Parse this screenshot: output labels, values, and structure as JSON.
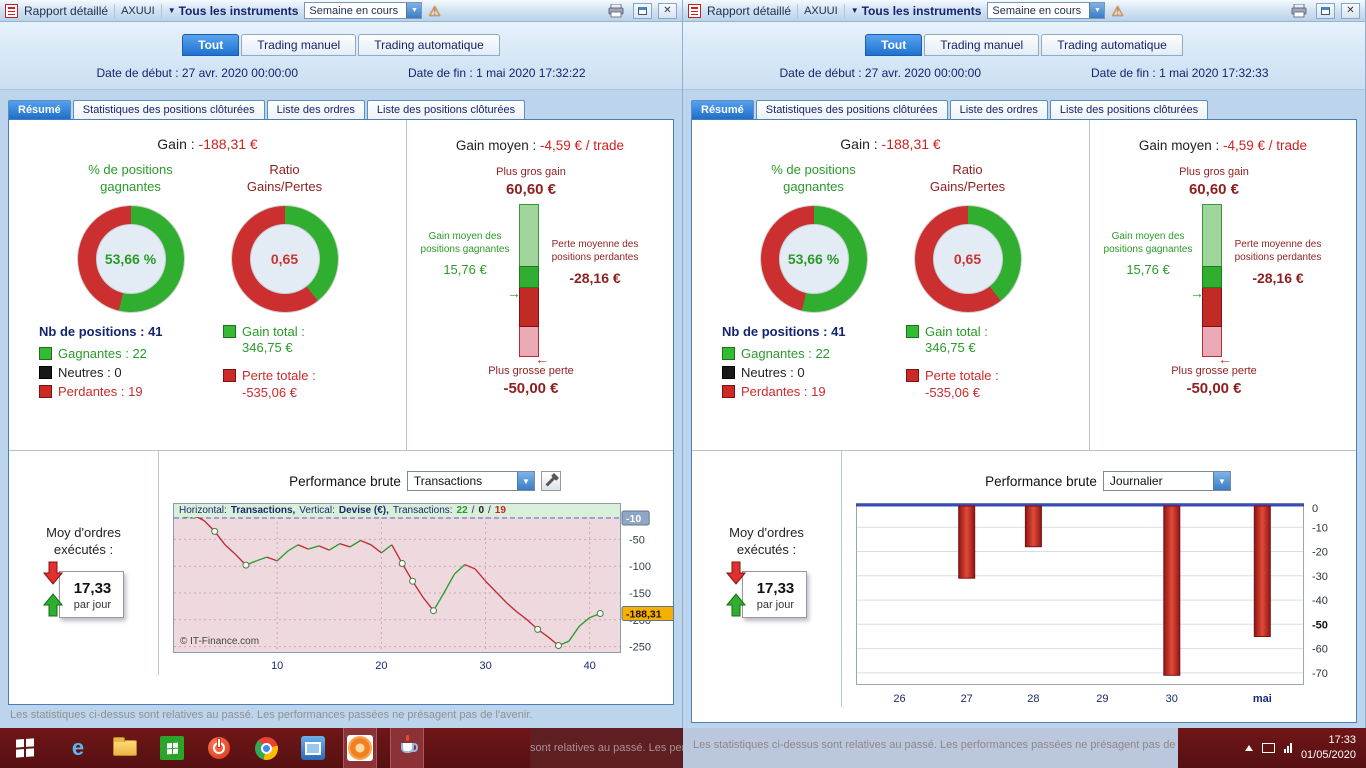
{
  "colors": {
    "green": "#2fae2f",
    "red": "#cc2f2f"
  },
  "taskbar": {
    "time": "17:33",
    "date": "01/05/2020",
    "overlay_text": "sont relatives au passé. Les performances passées ne présagent pas de l'a",
    "icons": [
      "start",
      "internet-explorer",
      "file-explorer",
      "desktop-tile",
      "power",
      "chrome",
      "app-blue",
      "prorealtime",
      "java"
    ]
  },
  "windows": [
    {
      "titlebar": {
        "app": "Rapport détaillé",
        "account": "AXUUI",
        "instruments": "Tous les instruments",
        "period": "Semaine en cours"
      },
      "mode_tabs": {
        "all": "Tout",
        "manual": "Trading manuel",
        "auto": "Trading automatique"
      },
      "dates": {
        "start_label": "Date de début :",
        "start_value": "27 avr. 2020 00:00:00",
        "end_label": "Date de fin :",
        "end_value": "1 mai 2020 17:32:22"
      },
      "tabs": {
        "resume": "Résumé",
        "stats": "Statistiques des positions clôturées",
        "orders": "Liste des ordres",
        "closed": "Liste des positions clôturées"
      },
      "summary": {
        "gain_label": "Gain :",
        "gain_value": "-188,31 €",
        "win_pct_header": "% de positions gagnantes",
        "ratio_header": "Ratio Gains/Pertes",
        "donut_win": {
          "label": "53,66 %",
          "green_pct": 53.66
        },
        "donut_ratio": {
          "label": "0,65",
          "green_pct": 39.4
        },
        "nb_label": "Nb de positions :",
        "nb_value": "41",
        "legend_win_label": "Gagnantes :",
        "legend_win_value": "22",
        "legend_neutral_label": "Neutres :",
        "legend_neutral_value": "0",
        "legend_loss_label": "Perdantes :",
        "legend_loss_value": "19",
        "gain_total_label": "Gain total :",
        "gain_total_value": "346,75 €",
        "loss_total_label": "Perte totale :",
        "loss_total_value": "-535,06 €",
        "avg_label": "Gain moyen :",
        "avg_value": "-4,59 €",
        "avg_suffix": "/ trade",
        "biggest_win_label": "Plus gros gain",
        "biggest_win_value": "60,60 €",
        "avg_win_label": "Gain moyen des positions gagnantes",
        "avg_win_value": "15,76 €",
        "avg_loss_label": "Perte moyenne des positions perdantes",
        "avg_loss_value": "-28,16 €",
        "biggest_loss_label": "Plus grosse perte",
        "biggest_loss_value": "-50,00 €"
      },
      "performance": {
        "label": "Performance brute",
        "selector_value": "Transactions",
        "avg_orders_label": "Moy d'ordres exécutés :",
        "avg_orders_value": "17,33",
        "avg_orders_unit": "par jour"
      },
      "chart_data": {
        "type": "line",
        "title": "Performance brute - Transactions",
        "header": {
          "h_label": "Horizontal:",
          "h_value": "Transactions,",
          "v_label": "Vertical:",
          "v_value": "Devise (€),",
          "t_label": "Transactions:",
          "wins": "22",
          "sep": "/",
          "neutrals": "0",
          "losses": "19"
        },
        "copyright": "© IT-Finance.com",
        "xlim": [
          0,
          43
        ],
        "ylim": [
          18,
          -262
        ],
        "xticks": [
          10,
          20,
          30,
          40
        ],
        "yticks": [
          -50,
          -100,
          -150,
          -200,
          -250
        ],
        "top_marker": {
          "value": -10,
          "label": "-10"
        },
        "current_marker": {
          "value": -188.31,
          "label": "-188,31"
        },
        "points": [
          [
            1,
            -10
          ],
          [
            2,
            -5
          ],
          [
            3,
            -15
          ],
          [
            4,
            -35
          ],
          [
            5,
            -60
          ],
          [
            6,
            -78
          ],
          [
            7,
            -98
          ],
          [
            8,
            -90
          ],
          [
            9,
            -83
          ],
          [
            10,
            -90
          ],
          [
            11,
            -72
          ],
          [
            12,
            -60
          ],
          [
            13,
            -68
          ],
          [
            14,
            -62
          ],
          [
            15,
            -70
          ],
          [
            16,
            -58
          ],
          [
            17,
            -64
          ],
          [
            18,
            -52
          ],
          [
            19,
            -60
          ],
          [
            20,
            -75
          ],
          [
            21,
            -60
          ],
          [
            22,
            -95
          ],
          [
            23,
            -128
          ],
          [
            24,
            -158
          ],
          [
            25,
            -183
          ],
          [
            26,
            -150
          ],
          [
            27,
            -115
          ],
          [
            28,
            -97
          ],
          [
            29,
            -105
          ],
          [
            30,
            -128
          ],
          [
            31,
            -148
          ],
          [
            32,
            -168
          ],
          [
            33,
            -185
          ],
          [
            34,
            -200
          ],
          [
            35,
            -218
          ],
          [
            36,
            -232
          ],
          [
            37,
            -248
          ],
          [
            38,
            -240
          ],
          [
            39,
            -212
          ],
          [
            40,
            -196
          ],
          [
            41,
            -188.31
          ]
        ],
        "markers": [
          2,
          4,
          7,
          22,
          23,
          25,
          35,
          37,
          41
        ]
      },
      "footer": "Les statistiques ci-dessus sont relatives au passé. Les performances passées ne présagent pas de l'avenir."
    },
    {
      "titlebar": {
        "app": "Rapport détaillé",
        "account": "AXUUI",
        "instruments": "Tous les instruments",
        "period": "Semaine en cours"
      },
      "mode_tabs": {
        "all": "Tout",
        "manual": "Trading manuel",
        "auto": "Trading automatique"
      },
      "dates": {
        "start_label": "Date de début :",
        "start_value": "27 avr. 2020 00:00:00",
        "end_label": "Date de fin :",
        "end_value": "1 mai 2020 17:32:33"
      },
      "tabs": {
        "resume": "Résumé",
        "stats": "Statistiques des positions clôturées",
        "orders": "Liste des ordres",
        "closed": "Liste des positions clôturées"
      },
      "summary": {
        "gain_label": "Gain :",
        "gain_value": "-188,31 €",
        "win_pct_header": "% de positions gagnantes",
        "ratio_header": "Ratio Gains/Pertes",
        "donut_win": {
          "label": "53,66 %",
          "green_pct": 53.66
        },
        "donut_ratio": {
          "label": "0,65",
          "green_pct": 39.4
        },
        "nb_label": "Nb de positions :",
        "nb_value": "41",
        "legend_win_label": "Gagnantes :",
        "legend_win_value": "22",
        "legend_neutral_label": "Neutres :",
        "legend_neutral_value": "0",
        "legend_loss_label": "Perdantes :",
        "legend_loss_value": "19",
        "gain_total_label": "Gain total :",
        "gain_total_value": "346,75 €",
        "loss_total_label": "Perte totale :",
        "loss_total_value": "-535,06 €",
        "avg_label": "Gain moyen :",
        "avg_value": "-4,59 €",
        "avg_suffix": "/ trade",
        "biggest_win_label": "Plus gros gain",
        "biggest_win_value": "60,60 €",
        "avg_win_label": "Gain moyen des positions gagnantes",
        "avg_win_value": "15,76 €",
        "avg_loss_label": "Perte moyenne des positions perdantes",
        "avg_loss_value": "-28,16 €",
        "biggest_loss_label": "Plus grosse perte",
        "biggest_loss_value": "-50,00 €"
      },
      "performance": {
        "label": "Performance brute",
        "selector_value": "Journalier",
        "avg_orders_label": "Moy d'ordres exécutés :",
        "avg_orders_value": "17,33",
        "avg_orders_unit": "par jour"
      },
      "chart_data": {
        "type": "bar",
        "title": "Performance brute - Journalier",
        "categories": [
          "26",
          "27",
          "28",
          "29",
          "30",
          "mai"
        ],
        "values": [
          0,
          -31,
          -18,
          0,
          -71,
          -55
        ],
        "x_pct": [
          9.7,
          24.7,
          39.6,
          55,
          70.5,
          90.7
        ],
        "yticks": [
          0,
          -10,
          -20,
          -30,
          -40,
          -50,
          -60,
          -70
        ],
        "bold_ticks": [
          -50
        ],
        "bold_categories": [
          "mai"
        ],
        "ylim": [
          0,
          -75
        ]
      },
      "footer": "Les statistiques ci-dessus sont relatives au passé. Les performances passées ne présagent pas de l'avenir."
    }
  ]
}
